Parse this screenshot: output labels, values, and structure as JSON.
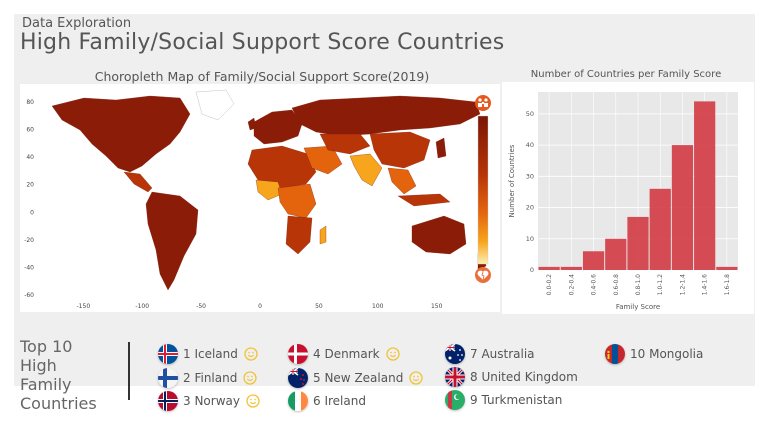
{
  "header": {
    "kicker": "Data Exploration",
    "title": "High Family/Social Support Score Countries"
  },
  "map": {
    "title": "Choropleth Map of Family/Social Support Score(2019)",
    "x_ticks": [
      "-150",
      "-100",
      "-50",
      "0",
      "50",
      "100",
      "150"
    ],
    "y_ticks": [
      "80",
      "60",
      "40",
      "20",
      "0",
      "-20",
      "-40",
      "-60"
    ],
    "colors": {
      "high": "#8b1d08",
      "mid_high": "#b83508",
      "mid": "#e4640e",
      "low": "#f7a51c",
      "lowest": "#fde99a",
      "missing": "#ffffff"
    },
    "icons": [
      "family-icon",
      "broken-heart-icon"
    ]
  },
  "chart_data": {
    "type": "bar",
    "title": "Number of Countries per Family Score",
    "xlabel": "Family Score",
    "ylabel": "Number of Countries",
    "categories": [
      "0.0-0.2",
      "0.2-0.4",
      "0.4-0.6",
      "0.6-0.8",
      "0.8-1.0",
      "1.0-1.2",
      "1.2-1.4",
      "1.4-1.6",
      "1.6-1.8"
    ],
    "values": [
      1,
      1,
      6,
      10,
      17,
      26,
      40,
      54,
      1
    ],
    "y_ticks": [
      0,
      10,
      20,
      30,
      40,
      50
    ],
    "ylim": [
      0,
      57
    ],
    "grid": true,
    "bar_color": "#d13a43"
  },
  "legend": {
    "heading_lines": [
      "Top 10",
      "High",
      "Family",
      "Countries"
    ],
    "countries": [
      {
        "label": "1 Iceland",
        "flag": "iceland-flag-icon",
        "smile": true
      },
      {
        "label": "2 Finland",
        "flag": "finland-flag-icon",
        "smile": true
      },
      {
        "label": "3 Norway",
        "flag": "norway-flag-icon",
        "smile": true
      },
      {
        "label": "4 Denmark",
        "flag": "denmark-flag-icon",
        "smile": true
      },
      {
        "label": "5 New Zealand",
        "flag": "new-zealand-flag-icon",
        "smile": true
      },
      {
        "label": "6 Ireland",
        "flag": "ireland-flag-icon",
        "smile": false
      },
      {
        "label": "7 Australia",
        "flag": "australia-flag-icon",
        "smile": false
      },
      {
        "label": "8 United Kingdom",
        "flag": "united-kingdom-flag-icon",
        "smile": false
      },
      {
        "label": "9 Turkmenistan",
        "flag": "turkmenistan-flag-icon",
        "smile": false
      },
      {
        "label": "10 Mongolia",
        "flag": "mongolia-flag-icon",
        "smile": false
      }
    ],
    "smile_color": "#f2c233"
  }
}
